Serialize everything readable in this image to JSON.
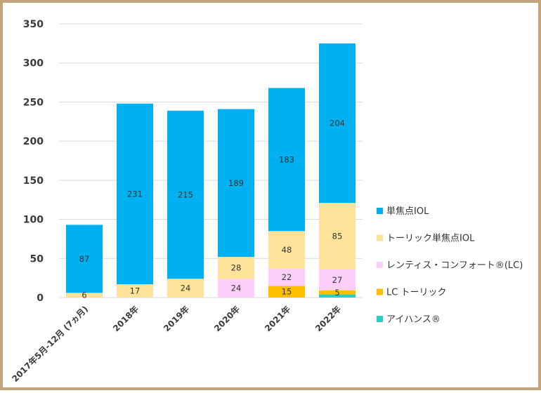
{
  "chart_data": {
    "type": "bar",
    "stacked": true,
    "categories": [
      "2017年5月-12月 (7ヵ月)",
      "2018年",
      "2019年",
      "2020年",
      "2021年",
      "2022年"
    ],
    "series": [
      {
        "name": "アイハンス®",
        "color": "#2ecdc3",
        "values": [
          0,
          0,
          0,
          0,
          0,
          4
        ]
      },
      {
        "name": "LC トーリック",
        "color": "#ffbf00",
        "values": [
          0,
          0,
          0,
          0,
          15,
          5
        ],
        "labels": [
          "",
          "",
          "",
          "",
          "15",
          "5"
        ]
      },
      {
        "name": "レンティス・コンフォート®(LC)",
        "color": "#fccffa",
        "values": [
          0,
          0,
          0,
          24,
          22,
          27
        ],
        "labels": [
          "",
          "",
          "",
          "24",
          "22",
          "27"
        ]
      },
      {
        "name": "トーリック単焦点IOL",
        "color": "#fde39a",
        "values": [
          6,
          17,
          24,
          28,
          48,
          85
        ],
        "labels": [
          "6",
          "17",
          "24",
          "28",
          "48",
          "85"
        ]
      },
      {
        "name": "単焦点IOL",
        "color": "#00b0f0",
        "values": [
          87,
          231,
          215,
          189,
          183,
          204
        ],
        "labels": [
          "87",
          "231",
          "215",
          "189",
          "183",
          "204"
        ]
      }
    ],
    "legend_order": [
      "単焦点IOL",
      "トーリック単焦点IOL",
      "レンティス・コンフォート®(LC)",
      "LC トーリック",
      "アイハンス®"
    ],
    "yticks": [
      0,
      50,
      100,
      150,
      200,
      250,
      300,
      350
    ],
    "ylim": [
      0,
      350
    ],
    "grid": true,
    "legend_position": "right",
    "title": "",
    "xlabel": "",
    "ylabel": ""
  }
}
